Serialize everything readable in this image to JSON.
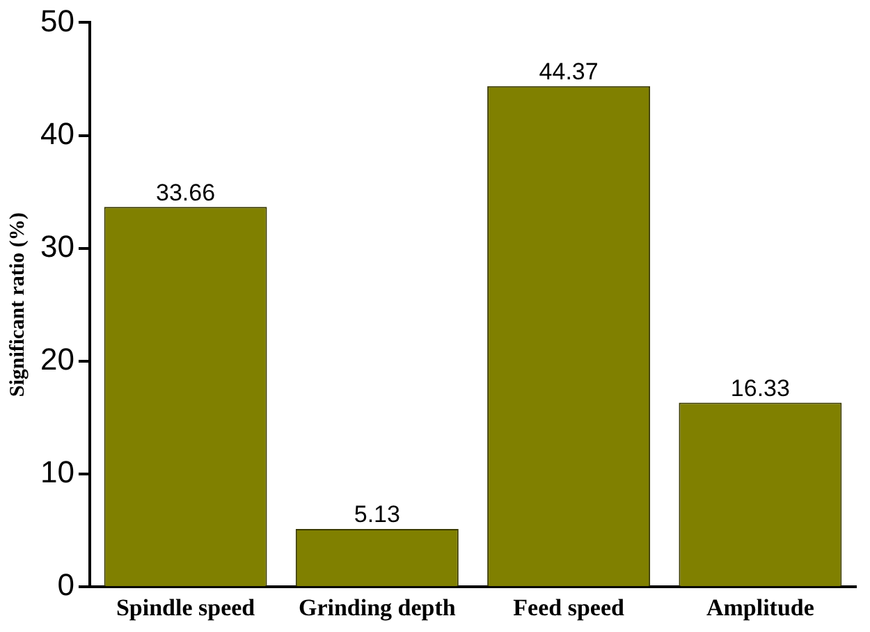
{
  "chart_data": {
    "type": "bar",
    "ylabel": "Significant ratio (%)",
    "categories": [
      "Spindle speed",
      "Grinding depth",
      "Feed speed",
      "Amplitude"
    ],
    "values": [
      33.66,
      5.13,
      44.37,
      16.33
    ],
    "color": "#808000",
    "ylim": [
      0,
      50
    ],
    "yticks": [
      0,
      10,
      20,
      30,
      40,
      50
    ],
    "grid": false,
    "legend": false,
    "data_labels": true
  }
}
